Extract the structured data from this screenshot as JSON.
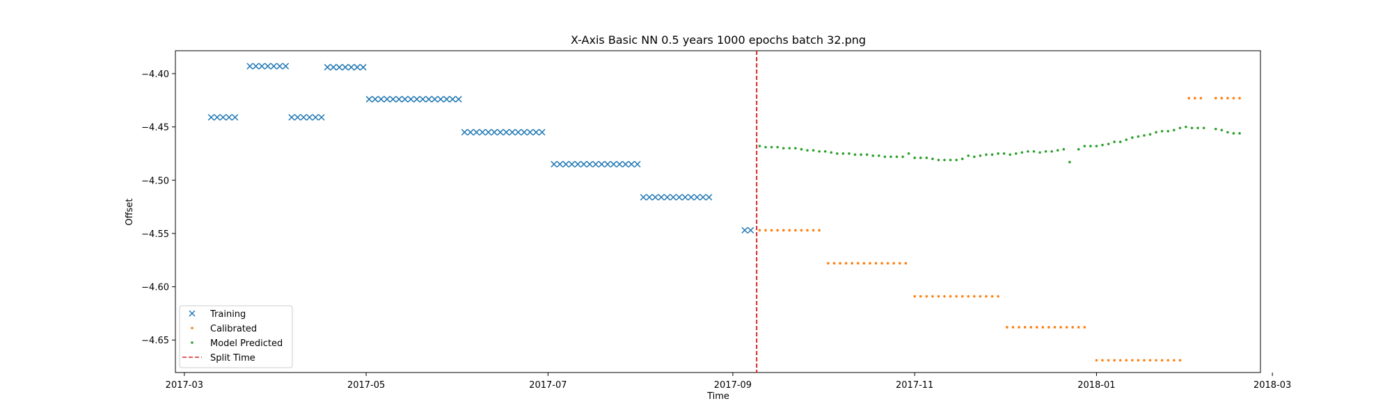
{
  "chart_data": {
    "type": "scatter",
    "title": "X-Axis Basic NN 0.5 years 1000 epochs batch 32.png",
    "xlabel": "Time",
    "ylabel": "Offset",
    "xlim": [
      "2017-02-26",
      "2018-02-25"
    ],
    "ylim": [
      -4.6805,
      -4.3785
    ],
    "yticks": [
      -4.65,
      -4.6,
      -4.55,
      -4.5,
      -4.45,
      -4.4
    ],
    "ytick_labels": [
      "−4.65",
      "−4.60",
      "−4.55",
      "−4.50",
      "−4.45",
      "−4.40"
    ],
    "xticks": [
      "2017-03-01",
      "2017-05-01",
      "2017-07-01",
      "2017-09-01",
      "2017-11-01",
      "2018-01-01",
      "2018-03-01"
    ],
    "xtick_labels": [
      "2017-03",
      "2017-05",
      "2017-07",
      "2017-09",
      "2017-11",
      "2018-01",
      "2018-03"
    ],
    "split_time": "2017-09-09",
    "legend_position": "lower-left",
    "legend": [
      "Training",
      "Calibrated",
      "Model Predicted",
      "Split Time"
    ],
    "colors": {
      "training": "#1f77b4",
      "calibrated": "#ff7f0e",
      "predicted": "#2ca02c",
      "split": "#d62728"
    },
    "series": [
      {
        "name": "Training",
        "marker": "x",
        "points": [
          [
            "2017-03-10",
            -4.441
          ],
          [
            "2017-03-12",
            -4.441
          ],
          [
            "2017-03-14",
            -4.441
          ],
          [
            "2017-03-16",
            -4.441
          ],
          [
            "2017-03-18",
            -4.441
          ],
          [
            "2017-03-23",
            -4.393
          ],
          [
            "2017-03-25",
            -4.393
          ],
          [
            "2017-03-27",
            -4.393
          ],
          [
            "2017-03-29",
            -4.393
          ],
          [
            "2017-03-31",
            -4.393
          ],
          [
            "2017-04-02",
            -4.393
          ],
          [
            "2017-04-04",
            -4.393
          ],
          [
            "2017-04-06",
            -4.441
          ],
          [
            "2017-04-08",
            -4.441
          ],
          [
            "2017-04-10",
            -4.441
          ],
          [
            "2017-04-12",
            -4.441
          ],
          [
            "2017-04-14",
            -4.441
          ],
          [
            "2017-04-16",
            -4.441
          ],
          [
            "2017-04-18",
            -4.394
          ],
          [
            "2017-04-20",
            -4.394
          ],
          [
            "2017-04-22",
            -4.394
          ],
          [
            "2017-04-24",
            -4.394
          ],
          [
            "2017-04-26",
            -4.394
          ],
          [
            "2017-04-28",
            -4.394
          ],
          [
            "2017-04-30",
            -4.394
          ],
          [
            "2017-05-02",
            -4.424
          ],
          [
            "2017-05-04",
            -4.424
          ],
          [
            "2017-05-06",
            -4.424
          ],
          [
            "2017-05-08",
            -4.424
          ],
          [
            "2017-05-10",
            -4.424
          ],
          [
            "2017-05-12",
            -4.424
          ],
          [
            "2017-05-14",
            -4.424
          ],
          [
            "2017-05-16",
            -4.424
          ],
          [
            "2017-05-18",
            -4.424
          ],
          [
            "2017-05-20",
            -4.424
          ],
          [
            "2017-05-22",
            -4.424
          ],
          [
            "2017-05-24",
            -4.424
          ],
          [
            "2017-05-26",
            -4.424
          ],
          [
            "2017-05-28",
            -4.424
          ],
          [
            "2017-05-30",
            -4.424
          ],
          [
            "2017-06-01",
            -4.424
          ],
          [
            "2017-06-03",
            -4.455
          ],
          [
            "2017-06-05",
            -4.455
          ],
          [
            "2017-06-07",
            -4.455
          ],
          [
            "2017-06-09",
            -4.455
          ],
          [
            "2017-06-11",
            -4.455
          ],
          [
            "2017-06-13",
            -4.455
          ],
          [
            "2017-06-15",
            -4.455
          ],
          [
            "2017-06-17",
            -4.455
          ],
          [
            "2017-06-19",
            -4.455
          ],
          [
            "2017-06-21",
            -4.455
          ],
          [
            "2017-06-23",
            -4.455
          ],
          [
            "2017-06-25",
            -4.455
          ],
          [
            "2017-06-27",
            -4.455
          ],
          [
            "2017-06-29",
            -4.455
          ],
          [
            "2017-07-03",
            -4.485
          ],
          [
            "2017-07-05",
            -4.485
          ],
          [
            "2017-07-07",
            -4.485
          ],
          [
            "2017-07-09",
            -4.485
          ],
          [
            "2017-07-11",
            -4.485
          ],
          [
            "2017-07-13",
            -4.485
          ],
          [
            "2017-07-15",
            -4.485
          ],
          [
            "2017-07-17",
            -4.485
          ],
          [
            "2017-07-19",
            -4.485
          ],
          [
            "2017-07-21",
            -4.485
          ],
          [
            "2017-07-23",
            -4.485
          ],
          [
            "2017-07-25",
            -4.485
          ],
          [
            "2017-07-27",
            -4.485
          ],
          [
            "2017-07-29",
            -4.485
          ],
          [
            "2017-07-31",
            -4.485
          ],
          [
            "2017-08-02",
            -4.516
          ],
          [
            "2017-08-04",
            -4.516
          ],
          [
            "2017-08-06",
            -4.516
          ],
          [
            "2017-08-08",
            -4.516
          ],
          [
            "2017-08-10",
            -4.516
          ],
          [
            "2017-08-12",
            -4.516
          ],
          [
            "2017-08-14",
            -4.516
          ],
          [
            "2017-08-16",
            -4.516
          ],
          [
            "2017-08-18",
            -4.516
          ],
          [
            "2017-08-20",
            -4.516
          ],
          [
            "2017-08-22",
            -4.516
          ],
          [
            "2017-08-24",
            -4.516
          ],
          [
            "2017-09-05",
            -4.547
          ],
          [
            "2017-09-07",
            -4.547
          ]
        ]
      },
      {
        "name": "Calibrated",
        "marker": "point",
        "points": [
          [
            "2017-09-10",
            -4.547
          ],
          [
            "2017-09-12",
            -4.547
          ],
          [
            "2017-09-14",
            -4.547
          ],
          [
            "2017-09-16",
            -4.547
          ],
          [
            "2017-09-18",
            -4.547
          ],
          [
            "2017-09-20",
            -4.547
          ],
          [
            "2017-09-22",
            -4.547
          ],
          [
            "2017-09-24",
            -4.547
          ],
          [
            "2017-09-26",
            -4.547
          ],
          [
            "2017-09-28",
            -4.547
          ],
          [
            "2017-09-30",
            -4.547
          ],
          [
            "2017-10-03",
            -4.578
          ],
          [
            "2017-10-05",
            -4.578
          ],
          [
            "2017-10-07",
            -4.578
          ],
          [
            "2017-10-09",
            -4.578
          ],
          [
            "2017-10-11",
            -4.578
          ],
          [
            "2017-10-13",
            -4.578
          ],
          [
            "2017-10-15",
            -4.578
          ],
          [
            "2017-10-17",
            -4.578
          ],
          [
            "2017-10-19",
            -4.578
          ],
          [
            "2017-10-21",
            -4.578
          ],
          [
            "2017-10-23",
            -4.578
          ],
          [
            "2017-10-25",
            -4.578
          ],
          [
            "2017-10-27",
            -4.578
          ],
          [
            "2017-10-29",
            -4.578
          ],
          [
            "2017-11-01",
            -4.609
          ],
          [
            "2017-11-03",
            -4.609
          ],
          [
            "2017-11-05",
            -4.609
          ],
          [
            "2017-11-07",
            -4.609
          ],
          [
            "2017-11-09",
            -4.609
          ],
          [
            "2017-11-11",
            -4.609
          ],
          [
            "2017-11-13",
            -4.609
          ],
          [
            "2017-11-15",
            -4.609
          ],
          [
            "2017-11-17",
            -4.609
          ],
          [
            "2017-11-19",
            -4.609
          ],
          [
            "2017-11-21",
            -4.609
          ],
          [
            "2017-11-23",
            -4.609
          ],
          [
            "2017-11-25",
            -4.609
          ],
          [
            "2017-11-27",
            -4.609
          ],
          [
            "2017-11-29",
            -4.609
          ],
          [
            "2017-12-02",
            -4.638
          ],
          [
            "2017-12-04",
            -4.638
          ],
          [
            "2017-12-06",
            -4.638
          ],
          [
            "2017-12-08",
            -4.638
          ],
          [
            "2017-12-10",
            -4.638
          ],
          [
            "2017-12-12",
            -4.638
          ],
          [
            "2017-12-14",
            -4.638
          ],
          [
            "2017-12-16",
            -4.638
          ],
          [
            "2017-12-18",
            -4.638
          ],
          [
            "2017-12-20",
            -4.638
          ],
          [
            "2017-12-22",
            -4.638
          ],
          [
            "2017-12-24",
            -4.638
          ],
          [
            "2017-12-26",
            -4.638
          ],
          [
            "2017-12-28",
            -4.638
          ],
          [
            "2018-01-01",
            -4.669
          ],
          [
            "2018-01-03",
            -4.669
          ],
          [
            "2018-01-05",
            -4.669
          ],
          [
            "2018-01-07",
            -4.669
          ],
          [
            "2018-01-09",
            -4.669
          ],
          [
            "2018-01-11",
            -4.669
          ],
          [
            "2018-01-13",
            -4.669
          ],
          [
            "2018-01-15",
            -4.669
          ],
          [
            "2018-01-17",
            -4.669
          ],
          [
            "2018-01-19",
            -4.669
          ],
          [
            "2018-01-21",
            -4.669
          ],
          [
            "2018-01-23",
            -4.669
          ],
          [
            "2018-01-25",
            -4.669
          ],
          [
            "2018-01-27",
            -4.669
          ],
          [
            "2018-01-29",
            -4.669
          ],
          [
            "2018-02-01",
            -4.423
          ],
          [
            "2018-02-03",
            -4.423
          ],
          [
            "2018-02-05",
            -4.423
          ],
          [
            "2018-02-10",
            -4.423
          ],
          [
            "2018-02-12",
            -4.423
          ],
          [
            "2018-02-14",
            -4.423
          ],
          [
            "2018-02-16",
            -4.423
          ],
          [
            "2018-02-18",
            -4.423
          ]
        ]
      },
      {
        "name": "Model Predicted",
        "marker": "point",
        "points": [
          [
            "2017-09-10",
            -4.468
          ],
          [
            "2017-09-12",
            -4.469
          ],
          [
            "2017-09-14",
            -4.469
          ],
          [
            "2017-09-16",
            -4.469
          ],
          [
            "2017-09-18",
            -4.47
          ],
          [
            "2017-09-20",
            -4.47
          ],
          [
            "2017-09-22",
            -4.47
          ],
          [
            "2017-09-24",
            -4.471
          ],
          [
            "2017-09-26",
            -4.472
          ],
          [
            "2017-09-28",
            -4.472
          ],
          [
            "2017-09-30",
            -4.473
          ],
          [
            "2017-10-02",
            -4.473
          ],
          [
            "2017-10-04",
            -4.474
          ],
          [
            "2017-10-06",
            -4.475
          ],
          [
            "2017-10-08",
            -4.475
          ],
          [
            "2017-10-10",
            -4.475
          ],
          [
            "2017-10-12",
            -4.476
          ],
          [
            "2017-10-14",
            -4.476
          ],
          [
            "2017-10-16",
            -4.476
          ],
          [
            "2017-10-18",
            -4.477
          ],
          [
            "2017-10-20",
            -4.477
          ],
          [
            "2017-10-22",
            -4.478
          ],
          [
            "2017-10-24",
            -4.478
          ],
          [
            "2017-10-26",
            -4.478
          ],
          [
            "2017-10-28",
            -4.478
          ],
          [
            "2017-10-30",
            -4.475
          ],
          [
            "2017-11-01",
            -4.479
          ],
          [
            "2017-11-03",
            -4.479
          ],
          [
            "2017-11-05",
            -4.479
          ],
          [
            "2017-11-07",
            -4.48
          ],
          [
            "2017-11-09",
            -4.481
          ],
          [
            "2017-11-11",
            -4.481
          ],
          [
            "2017-11-13",
            -4.481
          ],
          [
            "2017-11-15",
            -4.481
          ],
          [
            "2017-11-17",
            -4.48
          ],
          [
            "2017-11-19",
            -4.477
          ],
          [
            "2017-11-21",
            -4.478
          ],
          [
            "2017-11-23",
            -4.477
          ],
          [
            "2017-11-25",
            -4.476
          ],
          [
            "2017-11-27",
            -4.476
          ],
          [
            "2017-11-29",
            -4.475
          ],
          [
            "2017-12-01",
            -4.475
          ],
          [
            "2017-12-03",
            -4.476
          ],
          [
            "2017-12-05",
            -4.475
          ],
          [
            "2017-12-07",
            -4.474
          ],
          [
            "2017-12-09",
            -4.473
          ],
          [
            "2017-12-11",
            -4.473
          ],
          [
            "2017-12-13",
            -4.474
          ],
          [
            "2017-12-15",
            -4.473
          ],
          [
            "2017-12-17",
            -4.473
          ],
          [
            "2017-12-19",
            -4.472
          ],
          [
            "2017-12-21",
            -4.471
          ],
          [
            "2017-12-23",
            -4.483
          ],
          [
            "2017-12-26",
            -4.471
          ],
          [
            "2017-12-28",
            -4.468
          ],
          [
            "2017-12-30",
            -4.468
          ],
          [
            "2018-01-01",
            -4.468
          ],
          [
            "2018-01-03",
            -4.467
          ],
          [
            "2018-01-05",
            -4.466
          ],
          [
            "2018-01-07",
            -4.464
          ],
          [
            "2018-01-09",
            -4.464
          ],
          [
            "2018-01-11",
            -4.462
          ],
          [
            "2018-01-13",
            -4.46
          ],
          [
            "2018-01-15",
            -4.459
          ],
          [
            "2018-01-17",
            -4.458
          ],
          [
            "2018-01-19",
            -4.457
          ],
          [
            "2018-01-21",
            -4.455
          ],
          [
            "2018-01-23",
            -4.454
          ],
          [
            "2018-01-25",
            -4.454
          ],
          [
            "2018-01-27",
            -4.453
          ],
          [
            "2018-01-29",
            -4.451
          ],
          [
            "2018-01-31",
            -4.45
          ],
          [
            "2018-02-02",
            -4.451
          ],
          [
            "2018-02-04",
            -4.451
          ],
          [
            "2018-02-06",
            -4.451
          ],
          [
            "2018-02-10",
            -4.452
          ],
          [
            "2018-02-12",
            -4.453
          ],
          [
            "2018-02-14",
            -4.455
          ],
          [
            "2018-02-16",
            -4.456
          ],
          [
            "2018-02-18",
            -4.456
          ]
        ]
      }
    ]
  }
}
